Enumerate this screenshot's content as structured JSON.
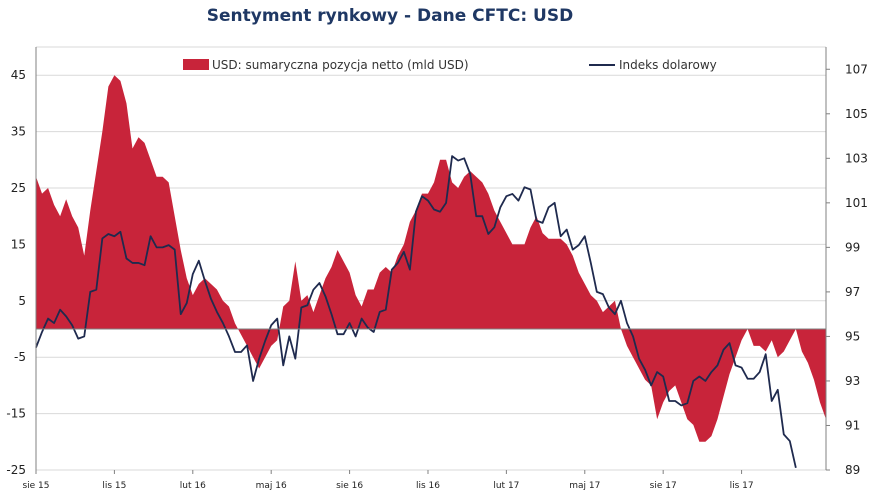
{
  "chart_data": {
    "type": "area+line",
    "title": "Sentyment rynkowy - Dane CFTC:  USD",
    "legend_placement": "top",
    "grid": true,
    "colors": {
      "area": "#c8243a",
      "line": "#1f2a4e",
      "grid": "#d9d9d9",
      "title": "#1f3864"
    },
    "y_left": {
      "min": -25,
      "max": 50,
      "ticks": [
        "45",
        "35",
        "25",
        "15",
        "5",
        "-5",
        "-15",
        "-25"
      ],
      "tick_values": [
        45,
        35,
        25,
        15,
        5,
        -5,
        -15,
        -25
      ]
    },
    "y_right": {
      "min": 89,
      "max": 108,
      "ticks": [
        "107",
        "105",
        "103",
        "101",
        "99",
        "97",
        "95",
        "93",
        "91",
        "89"
      ],
      "tick_values": [
        107,
        105,
        103,
        101,
        99,
        97,
        95,
        93,
        91,
        89
      ]
    },
    "x_labels": [
      "sie 15",
      "lis 15",
      "lut 16",
      "maj 16",
      "sie 16",
      "lis 16",
      "lut 17",
      "maj 17",
      "sie 17",
      "lis 17"
    ],
    "x_label_index": [
      0,
      13,
      26,
      39,
      52,
      65,
      78,
      91,
      104,
      117
    ],
    "series": [
      {
        "name": "USD: sumaryczna pozycja netto (mld USD)",
        "type": "area",
        "axis": "left",
        "values": [
          27,
          24,
          25,
          22,
          20,
          23,
          20,
          18,
          13,
          21,
          28,
          35,
          43,
          45,
          44,
          40,
          32,
          34,
          33,
          30,
          27,
          27,
          26,
          20,
          14,
          9,
          6,
          8,
          9,
          8,
          7,
          5,
          4,
          1,
          -1,
          -3,
          -5,
          -7,
          -5,
          -3,
          -2,
          4,
          5,
          12,
          5,
          6,
          3,
          6,
          9,
          11,
          14,
          12,
          10,
          6,
          4,
          7,
          7,
          10,
          11,
          10,
          13,
          15,
          19,
          21,
          24,
          24,
          26,
          30,
          30,
          26,
          25,
          27,
          28,
          27,
          26,
          24,
          21,
          19,
          17,
          15,
          15,
          15,
          18,
          20,
          17,
          16,
          16,
          16,
          15,
          13,
          10,
          8,
          6,
          5,
          3,
          4,
          5,
          0,
          -3,
          -5,
          -7,
          -9,
          -10,
          -16,
          -13,
          -11,
          -10,
          -13,
          -16,
          -17,
          -20,
          -20,
          -19,
          -16,
          -12,
          -8,
          -5,
          -2,
          0,
          -3,
          -3,
          -4,
          -2,
          -5,
          -4,
          -2,
          0,
          -4,
          -6,
          -9,
          -13,
          -16
        ]
      },
      {
        "name": "Indeks dolarowy",
        "type": "line",
        "axis": "right",
        "values": [
          94.5,
          95.2,
          95.8,
          95.6,
          96.2,
          95.9,
          95.5,
          94.9,
          95.0,
          97.0,
          97.1,
          99.4,
          99.6,
          99.5,
          99.7,
          98.5,
          98.3,
          98.3,
          98.2,
          99.5,
          99.0,
          99.0,
          99.1,
          98.9,
          96.0,
          96.5,
          97.8,
          98.4,
          97.5,
          96.7,
          96.1,
          95.6,
          95.0,
          94.3,
          94.3,
          94.6,
          93.0,
          94.0,
          94.8,
          95.5,
          95.8,
          93.7,
          95.0,
          94.0,
          96.3,
          96.4,
          97.1,
          97.4,
          96.8,
          96.0,
          95.1,
          95.1,
          95.6,
          95.0,
          95.8,
          95.4,
          95.2,
          96.1,
          96.2,
          98.0,
          98.3,
          98.8,
          98.0,
          100.6,
          101.3,
          101.1,
          100.7,
          100.6,
          101.0,
          103.1,
          102.9,
          103.0,
          102.3,
          100.4,
          100.4,
          99.6,
          99.9,
          100.8,
          101.3,
          101.4,
          101.1,
          101.7,
          101.6,
          100.2,
          100.1,
          100.8,
          101.0,
          99.5,
          99.8,
          98.9,
          99.1,
          99.5,
          98.3,
          97.0,
          96.9,
          96.3,
          96.0,
          96.6,
          95.6,
          95.0,
          94.0,
          93.5,
          92.8,
          93.4,
          93.2,
          92.1,
          92.1,
          91.9,
          92.0,
          93.0,
          93.2,
          93.0,
          93.4,
          93.7,
          94.4,
          94.7,
          93.7,
          93.6,
          93.1,
          93.1,
          93.4,
          94.2,
          92.1,
          92.6,
          90.6,
          90.3,
          89.1
        ]
      }
    ]
  }
}
